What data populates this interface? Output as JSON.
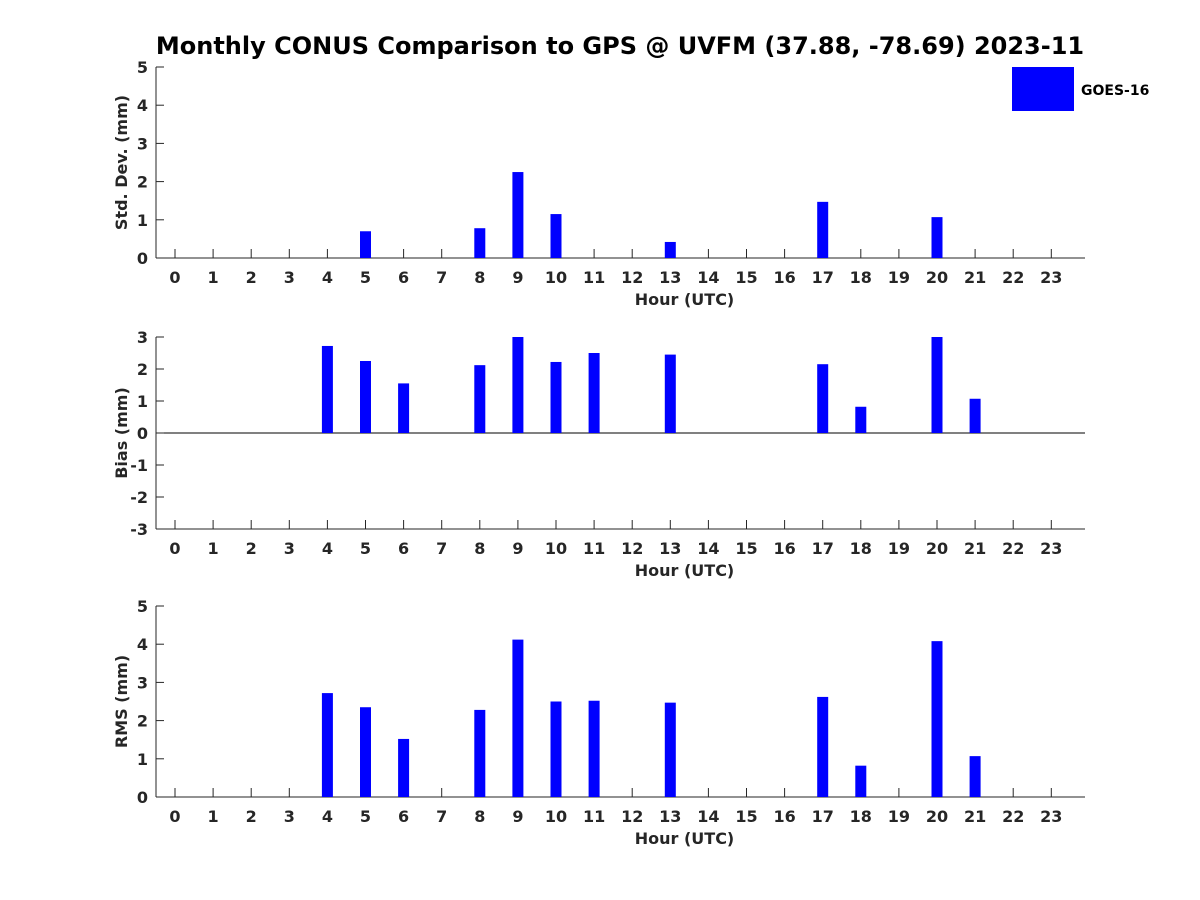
{
  "title": "Monthly CONUS Comparison to GPS @ UVFM (37.88, -78.69) 2023-11",
  "legend": {
    "label": "GOES-16",
    "color": "#0000ff"
  },
  "chart_data": [
    {
      "type": "bar",
      "name": "std-dev",
      "series_name": "GOES-16",
      "xlabel": "Hour (UTC)",
      "ylabel": "Std. Dev. (mm)",
      "ylim": [
        0,
        5
      ],
      "yticks": [
        "0",
        "1",
        "2",
        "3",
        "4",
        "5"
      ],
      "categories": [
        "0",
        "1",
        "2",
        "3",
        "4",
        "5",
        "6",
        "7",
        "8",
        "9",
        "10",
        "11",
        "12",
        "13",
        "14",
        "15",
        "16",
        "17",
        "18",
        "19",
        "20",
        "21",
        "22",
        "23"
      ],
      "values": [
        null,
        null,
        null,
        null,
        null,
        0.7,
        null,
        null,
        0.78,
        2.25,
        1.15,
        null,
        null,
        0.42,
        null,
        null,
        null,
        1.47,
        null,
        null,
        1.07,
        null,
        null,
        null
      ]
    },
    {
      "type": "bar",
      "name": "bias",
      "series_name": "GOES-16",
      "xlabel": "Hour (UTC)",
      "ylabel": "Bias (mm)",
      "ylim": [
        -3,
        3
      ],
      "yticks": [
        "-3",
        "-2",
        "-1",
        "0",
        "1",
        "2",
        "3"
      ],
      "zero_line": true,
      "categories": [
        "0",
        "1",
        "2",
        "3",
        "4",
        "5",
        "6",
        "7",
        "8",
        "9",
        "10",
        "11",
        "12",
        "13",
        "14",
        "15",
        "16",
        "17",
        "18",
        "19",
        "20",
        "21",
        "22",
        "23"
      ],
      "values": [
        null,
        null,
        null,
        null,
        2.72,
        2.25,
        1.55,
        null,
        2.12,
        3.0,
        2.22,
        2.5,
        null,
        2.45,
        null,
        null,
        null,
        2.15,
        0.82,
        null,
        3.0,
        1.07,
        null,
        null
      ]
    },
    {
      "type": "bar",
      "name": "rms",
      "series_name": "GOES-16",
      "xlabel": "Hour (UTC)",
      "ylabel": "RMS (mm)",
      "ylim": [
        0,
        5
      ],
      "yticks": [
        "0",
        "1",
        "2",
        "3",
        "4",
        "5"
      ],
      "categories": [
        "0",
        "1",
        "2",
        "3",
        "4",
        "5",
        "6",
        "7",
        "8",
        "9",
        "10",
        "11",
        "12",
        "13",
        "14",
        "15",
        "16",
        "17",
        "18",
        "19",
        "20",
        "21",
        "22",
        "23"
      ],
      "values": [
        null,
        null,
        null,
        null,
        2.72,
        2.35,
        1.52,
        null,
        2.28,
        4.12,
        2.5,
        2.52,
        null,
        2.47,
        null,
        null,
        null,
        2.62,
        0.82,
        null,
        4.08,
        1.07,
        null,
        null
      ]
    }
  ]
}
